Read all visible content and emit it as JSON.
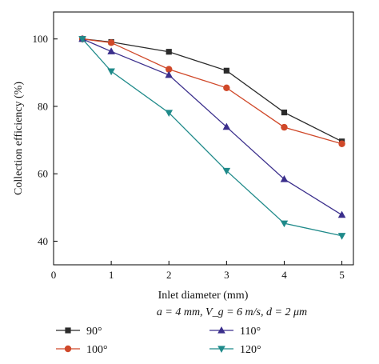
{
  "chart_data": {
    "type": "line",
    "xlabel": "Inlet diameter (mm)",
    "ylabel": "Collection efficiency (%)",
    "subcaption": "a = 4 mm, V_g = 6 m/s, d = 2 μm",
    "xlim": [
      0,
      5.2
    ],
    "ylim": [
      33,
      108
    ],
    "xticks": [
      0,
      1,
      2,
      3,
      4,
      5
    ],
    "yticks": [
      40,
      60,
      80,
      100
    ],
    "x": [
      0.5,
      1,
      2,
      3,
      4,
      5
    ],
    "series": [
      {
        "name": "90°",
        "values": [
          100,
          99.1,
          96.2,
          90.6,
          78.2,
          69.6
        ],
        "color": "#2b2b2b",
        "marker": "square"
      },
      {
        "name": "100°",
        "values": [
          100,
          98.9,
          91.0,
          85.5,
          73.8,
          68.9
        ],
        "color": "#d0492a",
        "marker": "circle"
      },
      {
        "name": "110°",
        "values": [
          100,
          96.3,
          89.3,
          73.9,
          58.4,
          47.8
        ],
        "color": "#3b2f8c",
        "marker": "triangle-up"
      },
      {
        "name": "120°",
        "values": [
          100,
          90.4,
          78.1,
          60.9,
          45.3,
          41.6
        ],
        "color": "#1f8a8a",
        "marker": "triangle-down"
      }
    ],
    "grid": false,
    "legend_position": "bottom"
  }
}
